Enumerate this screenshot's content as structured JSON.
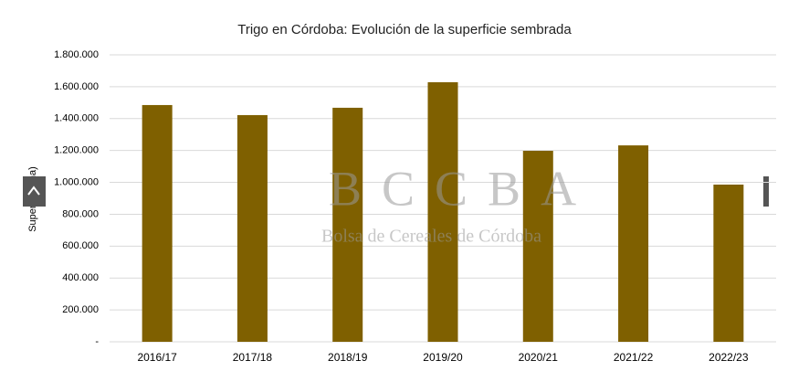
{
  "chart_data": {
    "type": "bar",
    "title": "Trigo en Córdoba: Evolución de la superficie sembrada",
    "y_label": "Superficie (ha)",
    "categories": [
      "2016/17",
      "2017/18",
      "2018/19",
      "2019/20",
      "2020/21",
      "2021/22",
      "2022/23"
    ],
    "values": [
      1485000,
      1422000,
      1468000,
      1628000,
      1198000,
      1232000,
      986000
    ],
    "color": "#7f6000",
    "ylim": [
      0,
      1800000
    ],
    "yticks": [
      {
        "value": 0,
        "label": "-"
      },
      {
        "value": 200000,
        "label": "200.000"
      },
      {
        "value": 400000,
        "label": "400.000"
      },
      {
        "value": 600000,
        "label": "600.000"
      },
      {
        "value": 800000,
        "label": "800.000"
      },
      {
        "value": 1000000,
        "label": "1.000.000"
      },
      {
        "value": 1200000,
        "label": "1.200.000"
      },
      {
        "value": 1400000,
        "label": "1.400.000"
      },
      {
        "value": 1600000,
        "label": "1.600.000"
      },
      {
        "value": 1800000,
        "label": "1.800.000"
      }
    ],
    "grid": true,
    "watermark": "BCCBA",
    "watermark_subtitle": "Bolsa de Cereales de Córdoba"
  }
}
